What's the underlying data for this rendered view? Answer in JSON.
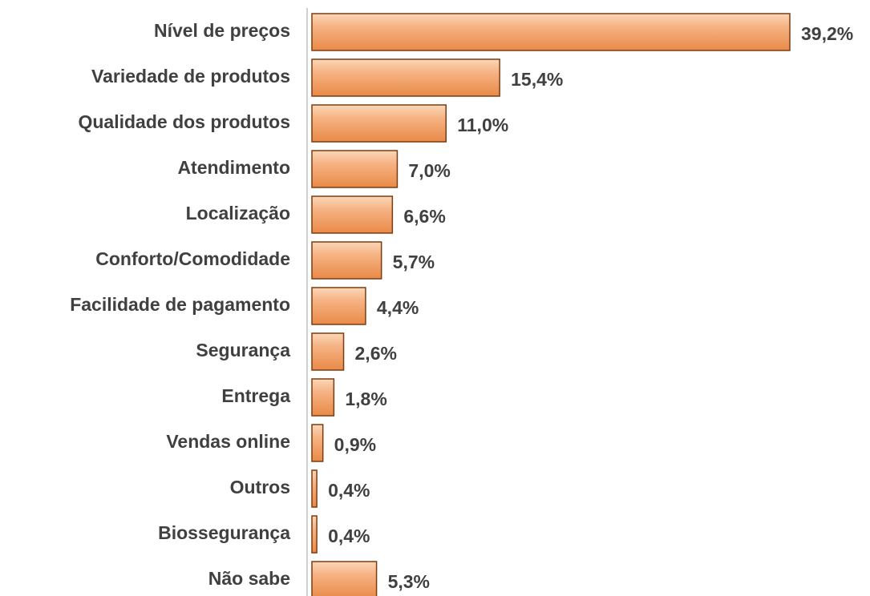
{
  "chart_data": {
    "type": "bar",
    "orientation": "horizontal",
    "categories": [
      "Nível de preços",
      "Variedade de produtos",
      "Qualidade dos produtos",
      "Atendimento",
      "Localização",
      "Conforto/Comodidade",
      "Facilidade de pagamento",
      "Segurança",
      "Entrega",
      "Vendas online",
      "Outros",
      "Biossegurança",
      "Não sabe"
    ],
    "values": [
      39.2,
      15.4,
      11.0,
      7.0,
      6.6,
      5.7,
      4.4,
      2.6,
      1.8,
      0.9,
      0.4,
      0.4,
      5.3
    ],
    "value_labels": [
      "39,2%",
      "15,4%",
      "11,0%",
      "7,0%",
      "6,6%",
      "5,7%",
      "4,4%",
      "2,6%",
      "1,8%",
      "0,9%",
      "0,4%",
      "0,4%",
      "5,3%"
    ],
    "color": "#f4a36a"
  }
}
